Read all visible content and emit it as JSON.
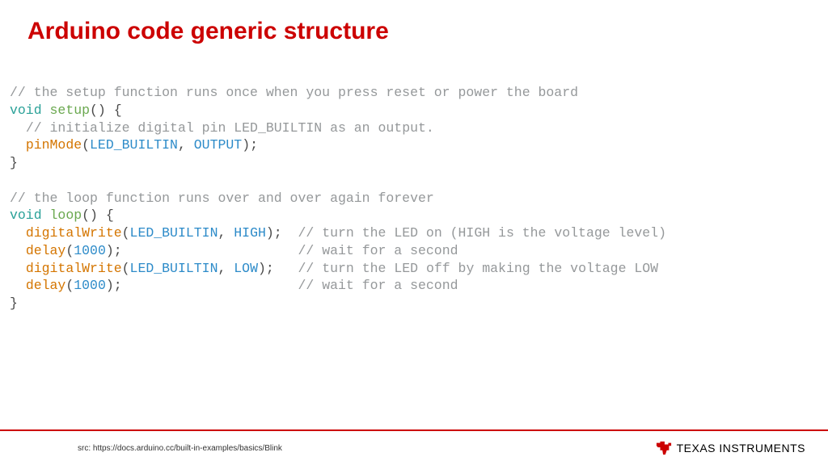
{
  "title": "Arduino code generic structure",
  "colors": {
    "title": "#cc0000",
    "rule": "#cc0000",
    "comment": "#95989a",
    "keyword": "#2aa198",
    "funcname": "#6aa84f",
    "call": "#d47500",
    "const": "#2d8bc9",
    "plain": "#4a4a4a",
    "background": "#ffffff"
  },
  "code": {
    "font_family": "Courier New, monospace",
    "font_size_pt": 12,
    "lines": [
      [
        {
          "t": "// the setup function runs once when you press reset or power the board",
          "c": "comment"
        }
      ],
      [
        {
          "t": "void",
          "c": "keyword"
        },
        {
          "t": " ",
          "c": "plain"
        },
        {
          "t": "setup",
          "c": "funcname"
        },
        {
          "t": "() {",
          "c": "plain"
        }
      ],
      [
        {
          "t": "  ",
          "c": "plain"
        },
        {
          "t": "// initialize digital pin LED_BUILTIN as an output.",
          "c": "comment"
        }
      ],
      [
        {
          "t": "  ",
          "c": "plain"
        },
        {
          "t": "pinMode",
          "c": "call"
        },
        {
          "t": "(",
          "c": "plain"
        },
        {
          "t": "LED_BUILTIN",
          "c": "const"
        },
        {
          "t": ", ",
          "c": "plain"
        },
        {
          "t": "OUTPUT",
          "c": "const"
        },
        {
          "t": ");",
          "c": "plain"
        }
      ],
      [
        {
          "t": "}",
          "c": "plain"
        }
      ],
      [],
      [
        {
          "t": "// the loop function runs over and over again forever",
          "c": "comment"
        }
      ],
      [
        {
          "t": "void",
          "c": "keyword"
        },
        {
          "t": " ",
          "c": "plain"
        },
        {
          "t": "loop",
          "c": "funcname"
        },
        {
          "t": "() {",
          "c": "plain"
        }
      ],
      [
        {
          "t": "  ",
          "c": "plain"
        },
        {
          "t": "digitalWrite",
          "c": "call"
        },
        {
          "t": "(",
          "c": "plain"
        },
        {
          "t": "LED_BUILTIN",
          "c": "const"
        },
        {
          "t": ", ",
          "c": "plain"
        },
        {
          "t": "HIGH",
          "c": "const"
        },
        {
          "t": ");  ",
          "c": "plain"
        },
        {
          "t": "// turn the LED on (HIGH is the voltage level)",
          "c": "comment"
        }
      ],
      [
        {
          "t": "  ",
          "c": "plain"
        },
        {
          "t": "delay",
          "c": "call"
        },
        {
          "t": "(",
          "c": "plain"
        },
        {
          "t": "1000",
          "c": "const"
        },
        {
          "t": ");                      ",
          "c": "plain"
        },
        {
          "t": "// wait for a second",
          "c": "comment"
        }
      ],
      [
        {
          "t": "  ",
          "c": "plain"
        },
        {
          "t": "digitalWrite",
          "c": "call"
        },
        {
          "t": "(",
          "c": "plain"
        },
        {
          "t": "LED_BUILTIN",
          "c": "const"
        },
        {
          "t": ", ",
          "c": "plain"
        },
        {
          "t": "LOW",
          "c": "const"
        },
        {
          "t": ");   ",
          "c": "plain"
        },
        {
          "t": "// turn the LED off by making the voltage LOW",
          "c": "comment"
        }
      ],
      [
        {
          "t": "  ",
          "c": "plain"
        },
        {
          "t": "delay",
          "c": "call"
        },
        {
          "t": "(",
          "c": "plain"
        },
        {
          "t": "1000",
          "c": "const"
        },
        {
          "t": ");                      ",
          "c": "plain"
        },
        {
          "t": "// wait for a second",
          "c": "comment"
        }
      ],
      [
        {
          "t": "}",
          "c": "plain"
        }
      ]
    ]
  },
  "footer": {
    "src": "src: https://docs.arduino.cc/built-in-examples/basics/Blink",
    "logo_text": "TEXAS INSTRUMENTS"
  }
}
